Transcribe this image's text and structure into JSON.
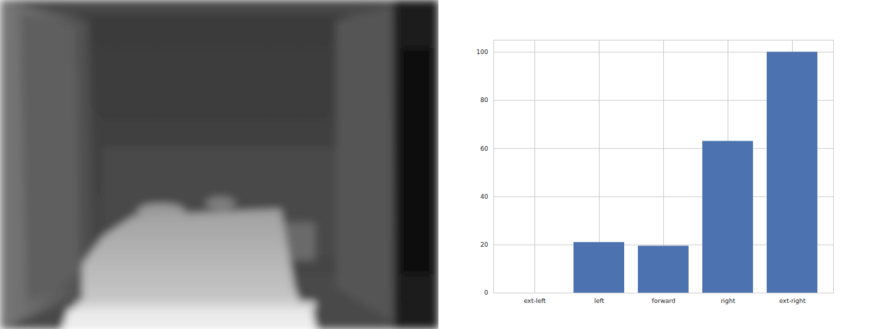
{
  "chart_data": {
    "type": "bar",
    "categories": [
      "ext-left",
      "left",
      "forward",
      "right",
      "ext-right"
    ],
    "values": [
      0,
      21,
      19.5,
      63,
      100
    ],
    "color": "#4c72b0",
    "ylim": [
      0,
      105
    ],
    "yticks": [
      0,
      20,
      40,
      60,
      80,
      100
    ],
    "grid": true
  }
}
